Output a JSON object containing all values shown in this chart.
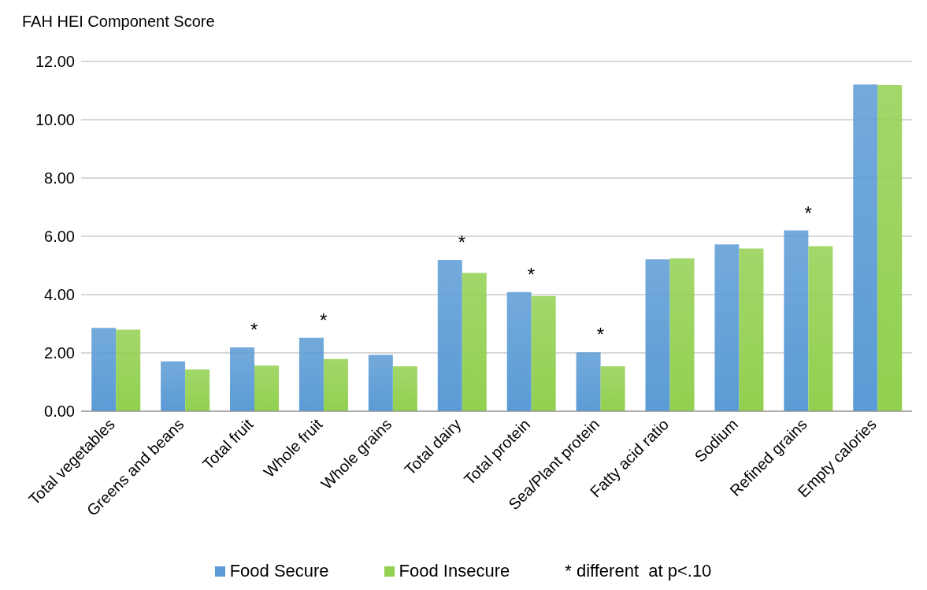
{
  "chart_data": {
    "type": "bar",
    "ylabel": "FAH HEI Component Score",
    "categories": [
      "Total vegetables",
      "Greens and beans",
      "Total fruit",
      "Whole fruit",
      "Whole grains",
      "Total dairy",
      "Total protein",
      "Sea/Plant protein",
      "Fatty acid ratio",
      "Sodium",
      "Refined grains",
      "Empty calories"
    ],
    "series": [
      {
        "name": "Food Secure",
        "color": "#5b9bd5",
        "values": [
          2.86,
          1.71,
          2.19,
          2.52,
          1.93,
          5.19,
          4.09,
          2.02,
          5.21,
          5.72,
          6.2,
          11.21
        ]
      },
      {
        "name": "Food Insecure",
        "color": "#92d050",
        "values": [
          2.8,
          1.43,
          1.57,
          1.79,
          1.54,
          4.74,
          3.95,
          1.54,
          5.24,
          5.58,
          5.66,
          11.19
        ]
      }
    ],
    "ylim": [
      0,
      12
    ],
    "yticks": [
      {
        "value": 0,
        "label": "0.00"
      },
      {
        "value": 2,
        "label": "2.00"
      },
      {
        "value": 4,
        "label": "4.00"
      },
      {
        "value": 6,
        "label": "6.00"
      },
      {
        "value": 8,
        "label": "8.00"
      },
      {
        "value": 10,
        "label": "10.00"
      },
      {
        "value": 12,
        "label": "12.00"
      }
    ],
    "grid": "y",
    "legend": "bottom",
    "annotations": [
      {
        "text": "*",
        "x": "Total fruit",
        "y": 2.19
      },
      {
        "text": "*",
        "x": "Whole fruit",
        "y": 2.52
      },
      {
        "text": "*",
        "x": "Total dairy",
        "y": 5.19
      },
      {
        "text": "*",
        "x": "Total protein",
        "y": 4.09
      },
      {
        "text": "*",
        "x": "Sea/Plant protein",
        "y": 2.02
      },
      {
        "text": "*",
        "x": "Refined grains",
        "y": 6.2
      },
      "* different  at p<.10"
    ]
  }
}
